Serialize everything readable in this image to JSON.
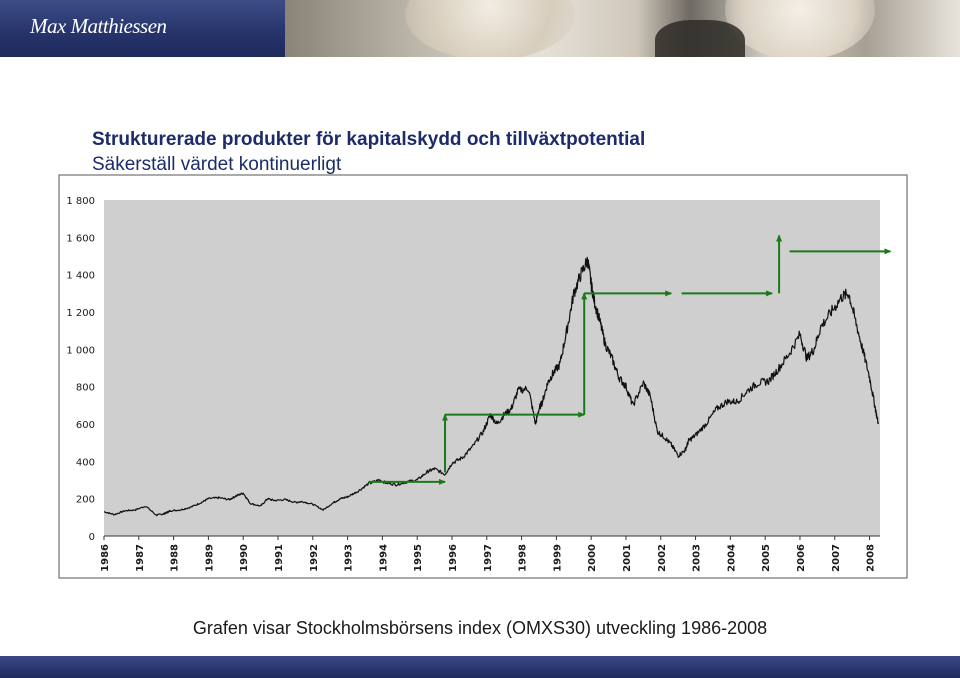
{
  "header": {
    "brand": "Max Matthiessen"
  },
  "slide": {
    "title": "Strukturerade produkter för kapitalskydd och tillväxtpotential",
    "subtitle": "Säkerställ värdet kontinuerligt",
    "caption": "Grafen visar Stockholmsbörsens index (OMXS30) utveckling 1986-2008"
  },
  "colors": {
    "line": "#111111",
    "arrows": "#1a7a1a",
    "plot_bg": "#cfcfcf",
    "title": "#1d2b6b",
    "brand_bar": "#26336a"
  },
  "chart_data": {
    "type": "line",
    "ylim": [
      0,
      1800
    ],
    "xlim": [
      1986,
      2008.3
    ],
    "yticks": [
      0,
      200,
      400,
      600,
      800,
      1000,
      1200,
      1400,
      1600,
      1800
    ],
    "ytick_labels": [
      "0",
      "200",
      "400",
      "600",
      "800",
      "1 000",
      "1 200",
      "1 400",
      "1 600",
      "1 800"
    ],
    "xtick_labels": [
      "1986",
      "1987",
      "1988",
      "1989",
      "1990",
      "1991",
      "1992",
      "1993",
      "1994",
      "1995",
      "1996",
      "1997",
      "1998",
      "1999",
      "2000",
      "2001",
      "2002",
      "2003",
      "2004",
      "2005",
      "2006",
      "2007",
      "2008"
    ],
    "grid": false,
    "series": [
      {
        "x": [
          1986.0,
          1986.3,
          1986.6,
          1986.9,
          1987.2,
          1987.5,
          1987.7,
          1987.8,
          1987.9,
          1988.2,
          1988.5,
          1988.8,
          1989.0,
          1989.3,
          1989.6,
          1989.8,
          1990.0,
          1990.2,
          1990.5,
          1990.7,
          1990.9,
          1991.2,
          1991.5,
          1991.7,
          1992.0,
          1992.3,
          1992.6,
          1992.8,
          1993.0,
          1993.3,
          1993.6,
          1993.9,
          1994.1,
          1994.4,
          1994.7,
          1995.0,
          1995.3,
          1995.5,
          1995.8,
          1996.0,
          1996.3,
          1996.6,
          1996.9,
          1997.1,
          1997.3,
          1997.5,
          1997.7,
          1997.9,
          1998.2,
          1998.4,
          1998.5,
          1998.6,
          1998.75,
          1998.9,
          1999.1,
          1999.3,
          1999.5,
          1999.7,
          1999.9,
          2000.0,
          2000.1,
          2000.25,
          2000.4,
          2000.6,
          2000.8,
          2001.0,
          2001.2,
          2001.5,
          2001.7,
          2001.9,
          2002.1,
          2002.3,
          2002.5,
          2002.7,
          2002.8,
          2003.0,
          2003.3,
          2003.6,
          2003.9,
          2004.2,
          2004.5,
          2004.8,
          2005.1,
          2005.4,
          2005.7,
          2006.0,
          2006.2,
          2006.4,
          2006.6,
          2006.9,
          2007.2,
          2007.4,
          2007.6,
          2007.8,
          2008.0,
          2008.15,
          2008.25
        ],
        "y": [
          130,
          115,
          135,
          140,
          160,
          112,
          118,
          125,
          135,
          140,
          155,
          180,
          200,
          205,
          195,
          215,
          230,
          175,
          160,
          200,
          190,
          195,
          180,
          185,
          170,
          140,
          180,
          200,
          210,
          240,
          280,
          300,
          285,
          275,
          290,
          300,
          345,
          360,
          330,
          390,
          420,
          480,
          560,
          650,
          600,
          650,
          680,
          780,
          790,
          600,
          680,
          720,
          820,
          870,
          920,
          1100,
          1300,
          1400,
          1480,
          1350,
          1250,
          1150,
          1030,
          950,
          850,
          800,
          700,
          820,
          750,
          560,
          530,
          490,
          430,
          460,
          510,
          540,
          600,
          680,
          720,
          720,
          780,
          820,
          830,
          900,
          980,
          1080,
          950,
          1000,
          1120,
          1200,
          1280,
          1300,
          1150,
          1000,
          850,
          700,
          600
        ]
      }
    ],
    "arrows": [
      {
        "type": "horizontal",
        "x": [
          1993.6,
          1995.8
        ],
        "y": 290
      },
      {
        "type": "vertical",
        "x": 1995.8,
        "y": [
          340,
          650
        ]
      },
      {
        "type": "horizontal",
        "x": [
          1995.8,
          1999.8
        ],
        "y": 650
      },
      {
        "type": "vertical",
        "x": 1999.8,
        "y": [
          650,
          1300
        ]
      },
      {
        "type": "horizontal",
        "x": [
          1999.8,
          2002.3
        ],
        "y": 1300
      },
      {
        "type": "horizontal",
        "x": [
          2002.6,
          2005.2
        ],
        "y": 1300
      },
      {
        "type": "vertical",
        "x": 2005.4,
        "y": [
          1300,
          1610
        ]
      },
      {
        "type": "horizontal",
        "x": [
          2005.7,
          2008.6
        ],
        "y": 1525
      }
    ]
  }
}
